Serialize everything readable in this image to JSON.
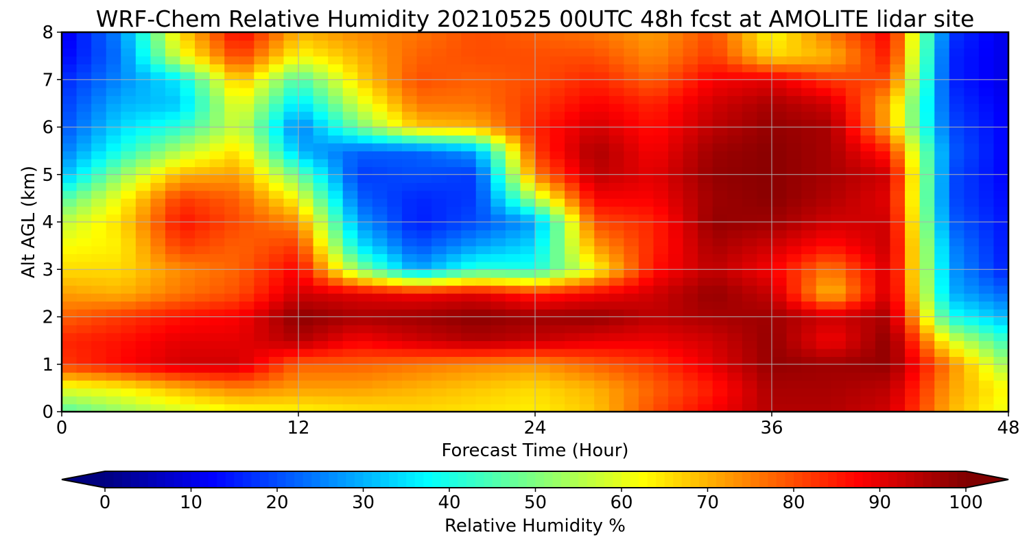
{
  "chart_data": {
    "type": "heatmap",
    "title": "WRF-Chem Relative Humidity 20210525 00UTC 48h fcst at AMOLITE lidar site",
    "xlabel": "Forecast Time (Hour)",
    "ylabel": "Alt AGL (km)",
    "xlim": [
      0,
      48
    ],
    "ylim": [
      0,
      8
    ],
    "xticks": [
      "0",
      "12",
      "24",
      "36",
      "48"
    ],
    "yticks": [
      "0",
      "1",
      "2",
      "3",
      "4",
      "5",
      "6",
      "7",
      "8"
    ],
    "grid": true,
    "colormap": "jet",
    "colorbar": {
      "label": "Relative Humidity %",
      "range": [
        0,
        100
      ],
      "ticks": [
        "0",
        "10",
        "20",
        "30",
        "40",
        "50",
        "60",
        "70",
        "80",
        "90",
        "100"
      ],
      "extend": "both",
      "orientation": "horizontal",
      "placement": "bottom"
    },
    "x": [
      0,
      3,
      6,
      9,
      12,
      15,
      18,
      21,
      24,
      27,
      30,
      33,
      36,
      39,
      42,
      45,
      48
    ],
    "y": [
      0,
      0.5,
      1,
      1.5,
      2,
      2.5,
      3,
      3.5,
      4,
      4.5,
      5,
      5.5,
      6,
      6.5,
      7,
      7.5,
      8
    ],
    "z": [
      [
        45,
        52,
        58,
        62,
        63,
        65,
        66,
        65,
        64,
        68,
        80,
        88,
        95,
        95,
        92,
        70,
        60
      ],
      [
        60,
        63,
        70,
        75,
        72,
        72,
        70,
        68,
        66,
        70,
        78,
        85,
        96,
        96,
        94,
        72,
        62
      ],
      [
        82,
        87,
        92,
        92,
        78,
        78,
        76,
        74,
        73,
        78,
        82,
        90,
        98,
        97,
        98,
        75,
        52
      ],
      [
        84,
        86,
        90,
        90,
        95,
        88,
        92,
        95,
        93,
        90,
        89,
        92,
        98,
        88,
        99,
        60,
        42
      ],
      [
        78,
        82,
        86,
        88,
        99,
        96,
        97,
        99,
        97,
        98,
        94,
        96,
        97,
        92,
        96,
        40,
        30
      ],
      [
        72,
        70,
        76,
        80,
        92,
        90,
        88,
        90,
        84,
        88,
        92,
        98,
        93,
        68,
        93,
        30,
        22
      ],
      [
        66,
        66,
        74,
        78,
        88,
        52,
        28,
        42,
        40,
        62,
        86,
        94,
        88,
        75,
        92,
        28,
        15
      ],
      [
        62,
        64,
        82,
        78,
        82,
        36,
        20,
        28,
        34,
        72,
        84,
        96,
        92,
        86,
        93,
        26,
        14
      ],
      [
        56,
        66,
        86,
        80,
        74,
        28,
        15,
        20,
        28,
        80,
        84,
        98,
        97,
        92,
        92,
        22,
        14
      ],
      [
        45,
        62,
        82,
        78,
        62,
        22,
        16,
        18,
        55,
        88,
        88,
        97,
        99,
        95,
        90,
        20,
        13
      ],
      [
        30,
        52,
        70,
        72,
        48,
        18,
        20,
        18,
        75,
        94,
        90,
        98,
        99,
        96,
        92,
        20,
        12
      ],
      [
        24,
        40,
        55,
        66,
        30,
        22,
        22,
        28,
        82,
        96,
        88,
        97,
        99,
        96,
        84,
        22,
        12
      ],
      [
        20,
        34,
        42,
        58,
        24,
        48,
        68,
        70,
        84,
        92,
        86,
        94,
        98,
        96,
        70,
        20,
        12
      ],
      [
        18,
        30,
        32,
        62,
        34,
        58,
        76,
        76,
        82,
        88,
        84,
        92,
        96,
        92,
        70,
        18,
        11
      ],
      [
        16,
        26,
        36,
        70,
        44,
        66,
        80,
        78,
        80,
        84,
        78,
        88,
        90,
        82,
        80,
        16,
        10
      ],
      [
        12,
        24,
        60,
        82,
        62,
        70,
        78,
        80,
        80,
        80,
        74,
        82,
        66,
        70,
        86,
        16,
        10
      ],
      [
        10,
        26,
        66,
        88,
        70,
        74,
        76,
        80,
        78,
        76,
        72,
        80,
        62,
        76,
        88,
        18,
        10
      ]
    ]
  }
}
